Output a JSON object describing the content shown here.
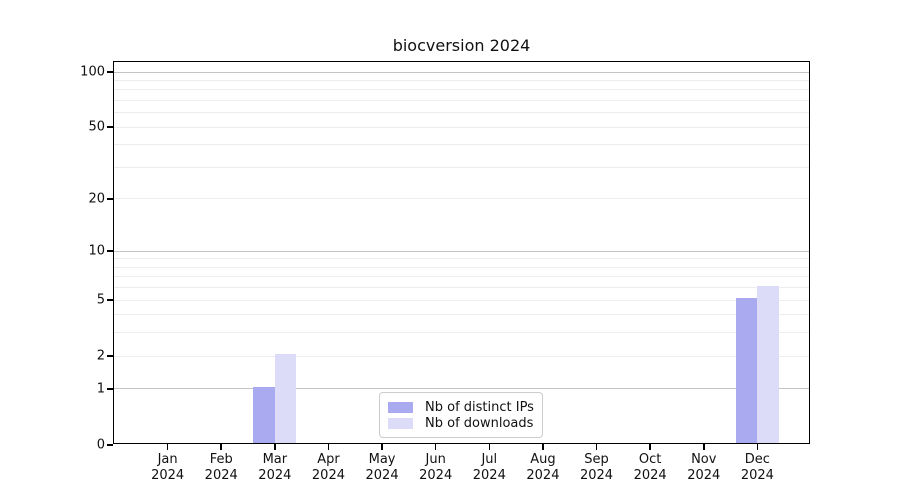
{
  "chart_data": {
    "type": "bar",
    "title": "biocversion 2024",
    "categories": [
      "Jan",
      "Feb",
      "Mar",
      "Apr",
      "May",
      "Jun",
      "Jul",
      "Aug",
      "Sep",
      "Oct",
      "Nov",
      "Dec"
    ],
    "category_year": "2024",
    "series": [
      {
        "name": "Nb of distinct IPs",
        "color": "#aaaaf0",
        "values": [
          0,
          0,
          1,
          0,
          0,
          0,
          0,
          0,
          0,
          0,
          0,
          5
        ]
      },
      {
        "name": "Nb of downloads",
        "color": "#dcdcf8",
        "values": [
          0,
          0,
          2,
          0,
          0,
          0,
          0,
          0,
          0,
          0,
          0,
          6
        ]
      }
    ],
    "yscale": "log1p",
    "yticks": [
      0,
      1,
      2,
      5,
      10,
      20,
      50,
      100
    ],
    "major_grid_values": [
      1,
      10,
      100
    ],
    "minor_grid_values": [
      2,
      3,
      4,
      5,
      6,
      7,
      8,
      9,
      20,
      30,
      40,
      50,
      60,
      70,
      80,
      90
    ],
    "ylim": [
      0,
      113
    ],
    "xlabel": "",
    "ylabel": "",
    "grid": true,
    "legend_position": "lower center",
    "colors": {
      "spine": "#000000",
      "major_grid": "#c4c4c4",
      "minor_grid": "#ededed",
      "text": "#111111",
      "legend_border": "#cccccc",
      "background": "#ffffff"
    }
  }
}
